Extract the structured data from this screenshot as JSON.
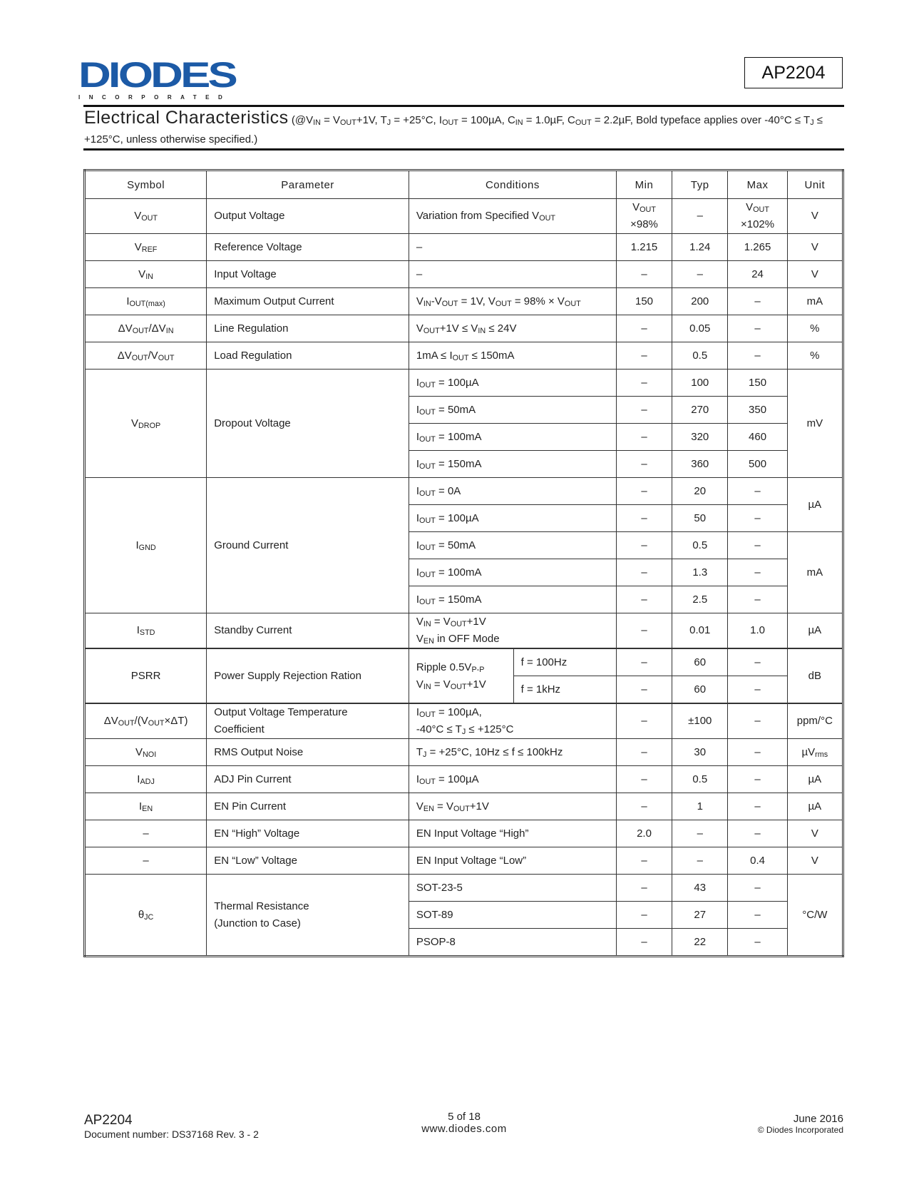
{
  "header": {
    "logo_text": "DIODES",
    "logo_subtext": "INCORPORATED",
    "brand_color": "#1c5aa6",
    "part_number": "AP2204"
  },
  "section": {
    "title": "Electrical Characteristics",
    "conditions": "(@V_{IN} = V_{OUT}+1V, T_{J} = +25°C, I_{OUT} = 100µA, C_{IN} = 1.0µF, C_{OUT} = 2.2µF, Bold typeface applies over -40°C ≤ T_{J} ≤ +125°C, unless otherwise specified.)"
  },
  "table": {
    "headers": [
      "Symbol",
      "Parameter",
      "Conditions",
      "Min",
      "Typ",
      "Max",
      "Unit"
    ],
    "groups": [
      {
        "symbol": "V_{OUT}",
        "parameter": "Output Voltage",
        "unit": "V",
        "rows": [
          {
            "conditions": "Variation from Specified V_{OUT}",
            "min": "V_{OUT}\n×98%",
            "typ": "–",
            "max": "V_{OUT}\n×102%"
          }
        ]
      },
      {
        "symbol": "V_{REF}",
        "parameter": "Reference Voltage",
        "unit": "V",
        "rows": [
          {
            "conditions": "–",
            "min": "1.215",
            "typ": "1.24",
            "max": "1.265"
          }
        ]
      },
      {
        "symbol": "V_{IN}",
        "parameter": "Input Voltage",
        "unit": "V",
        "rows": [
          {
            "conditions": "–",
            "min": "–",
            "typ": "–",
            "max": "24"
          }
        ]
      },
      {
        "symbol": "I_{OUT(max)}",
        "parameter": "Maximum Output Current",
        "unit": "mA",
        "rows": [
          {
            "conditions": "V_{IN}-V_{OUT} = 1V, V_{OUT} = 98% × V_{OUT}",
            "min": "150",
            "typ": "200",
            "max": "–"
          }
        ]
      },
      {
        "symbol": "ΔV_{OUT}/ΔV_{IN}",
        "parameter": "Line Regulation",
        "unit": "%",
        "rows": [
          {
            "conditions": "V_{OUT}+1V ≤ V_{IN} ≤ 24V",
            "min": "–",
            "typ": "0.05",
            "max": "–"
          }
        ]
      },
      {
        "symbol": "ΔV_{OUT}/V_{OUT}",
        "parameter": "Load Regulation",
        "unit": "%",
        "rows": [
          {
            "conditions": "1mA ≤ I_{OUT} ≤ 150mA",
            "min": "–",
            "typ": "0.5",
            "max": "–"
          }
        ]
      },
      {
        "symbol": "V_{DROP}",
        "parameter": "Dropout Voltage",
        "unit": "mV",
        "rows": [
          {
            "conditions": "I_{OUT} = 100µA",
            "min": "–",
            "typ": "100",
            "max": "150"
          },
          {
            "conditions": "I_{OUT} = 50mA",
            "min": "–",
            "typ": "270",
            "max": "350"
          },
          {
            "conditions": "I_{OUT} = 100mA",
            "min": "–",
            "typ": "320",
            "max": "460"
          },
          {
            "conditions": "I_{OUT} = 150mA",
            "min": "–",
            "typ": "360",
            "max": "500"
          }
        ]
      },
      {
        "symbol": "I_{GND}",
        "parameter": "Ground Current",
        "units": [
          {
            "unit": "µA",
            "count": 2
          },
          {
            "unit": "mA",
            "count": 3
          }
        ],
        "rows": [
          {
            "conditions": "I_{OUT} = 0A",
            "min": "–",
            "typ": "20",
            "max": "–"
          },
          {
            "conditions": "I_{OUT} = 100µA",
            "min": "–",
            "typ": "50",
            "max": "–"
          },
          {
            "conditions": "I_{OUT} = 50mA",
            "min": "–",
            "typ": "0.5",
            "max": "–"
          },
          {
            "conditions": "I_{OUT} = 100mA",
            "min": "–",
            "typ": "1.3",
            "max": "–"
          },
          {
            "conditions": "I_{OUT} = 150mA",
            "min": "–",
            "typ": "2.5",
            "max": "–"
          }
        ]
      },
      {
        "symbol": "I_{STD}",
        "parameter": "Standby Current",
        "unit": "µA",
        "rows": [
          {
            "conditions": "V_{IN} = V_{OUT}+1V\nV_{EN} in OFF Mode",
            "min": "–",
            "typ": "0.01",
            "max": "1.0"
          }
        ]
      },
      {
        "symbol": "PSRR",
        "parameter": "Power Supply Rejection Ration",
        "unit": "dB",
        "conditions": "Ripple 0.5V_{P-P}\nV_{IN} = V_{OUT}+1V",
        "rows": [
          {
            "frequency": "f = 100Hz",
            "min": "–",
            "typ": "60",
            "max": "–"
          },
          {
            "frequency": "f = 1kHz",
            "min": "–",
            "typ": "60",
            "max": "–"
          }
        ]
      },
      {
        "symbol": "ΔV_{OUT}/(V_{OUT}×ΔT)",
        "parameter": "Output Voltage Temperature\nCoefficient",
        "unit": "ppm/°C",
        "rows": [
          {
            "conditions": "I_{OUT} = 100µA,\n-40°C ≤ T_{J} ≤ +125°C",
            "min": "–",
            "typ": "±100",
            "max": "–"
          }
        ]
      },
      {
        "symbol": "V_{NOI}",
        "parameter": "RMS Output Noise",
        "unit": "µV_{rms}",
        "rows": [
          {
            "conditions": "T_{J} = +25°C, 10Hz ≤ f ≤ 100kHz",
            "min": "–",
            "typ": "30",
            "max": "–"
          }
        ]
      },
      {
        "symbol": "I_{ADJ}",
        "parameter": "ADJ Pin Current",
        "unit": "µA",
        "rows": [
          {
            "conditions": "I_{OUT} = 100µA",
            "min": "–",
            "typ": "0.5",
            "max": "–"
          }
        ]
      },
      {
        "symbol": "I_{EN}",
        "parameter": "EN Pin Current",
        "unit": "µA",
        "rows": [
          {
            "conditions": "V_{EN} = V_{OUT}+1V",
            "min": "–",
            "typ": "1",
            "max": "–"
          }
        ]
      },
      {
        "symbol": "–",
        "parameter": "EN “High” Voltage",
        "unit": "V",
        "rows": [
          {
            "conditions": "EN Input Voltage “High”",
            "min": "2.0",
            "typ": "–",
            "max": "–"
          }
        ]
      },
      {
        "symbol": "–",
        "parameter": "EN “Low” Voltage",
        "unit": "V",
        "rows": [
          {
            "conditions": "EN Input Voltage “Low”",
            "min": "–",
            "typ": "–",
            "max": "0.4"
          }
        ]
      },
      {
        "symbol": "θ_{JC}",
        "parameter": "Thermal Resistance\n(Junction to Case)",
        "unit": "°C/W",
        "rows": [
          {
            "conditions": "SOT-23-5",
            "min": "–",
            "typ": "43",
            "max": "–"
          },
          {
            "conditions": "SOT-89",
            "min": "–",
            "typ": "27",
            "max": "–"
          },
          {
            "conditions": "PSOP-8",
            "min": "–",
            "typ": "22",
            "max": "–"
          }
        ]
      }
    ]
  },
  "footer": {
    "part_number": "AP2204",
    "document_number": "Document number: DS37168  Rev. 3 - 2",
    "page": "5 of 18",
    "website": "www.diodes.com",
    "date": "June 2016",
    "copyright": "© Diodes Incorporated"
  }
}
